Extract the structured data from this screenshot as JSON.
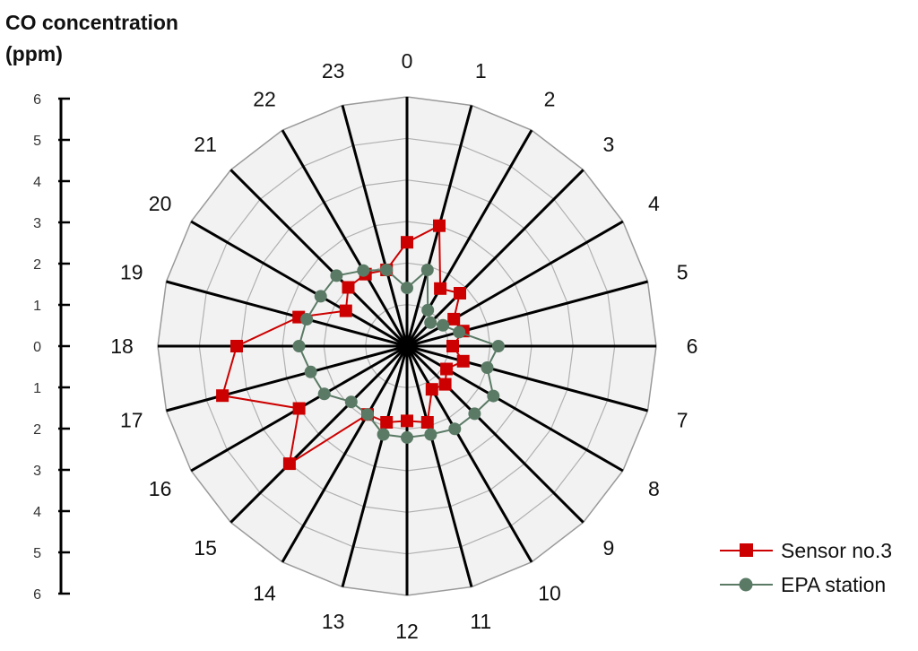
{
  "chart_data": {
    "type": "radar",
    "y_axis_title_line1": "CO concentration",
    "y_axis_title_line2": "(ppm)",
    "y_axis_ticks": [
      "6",
      "5",
      "4",
      "3",
      "2",
      "1",
      "0",
      "1",
      "2",
      "3",
      "4",
      "5",
      "6"
    ],
    "radial_range": [
      0,
      6
    ],
    "categories": [
      "0",
      "1",
      "2",
      "3",
      "4",
      "5",
      "6",
      "7",
      "8",
      "9",
      "10",
      "11",
      "12",
      "13",
      "14",
      "15",
      "16",
      "17",
      "18",
      "19",
      "20",
      "21",
      "22",
      "23"
    ],
    "grid": true,
    "legend_position": "bottom-right",
    "series": [
      {
        "name": "Sensor no.3",
        "color": "#cc0000",
        "marker": "square",
        "values": [
          2.5,
          3.0,
          1.6,
          1.8,
          1.3,
          1.4,
          1.1,
          1.4,
          1.1,
          1.3,
          1.2,
          1.9,
          1.8,
          1.9,
          1.9,
          4.0,
          3.0,
          4.6,
          4.1,
          2.7,
          1.7,
          2.0,
          2.0,
          1.9
        ]
      },
      {
        "name": "EPA station",
        "color": "#5a7a65",
        "marker": "circle",
        "values": [
          1.4,
          1.9,
          1.0,
          0.8,
          1.0,
          1.3,
          2.2,
          2.0,
          2.4,
          2.3,
          2.3,
          2.2,
          2.2,
          2.2,
          1.9,
          1.9,
          2.3,
          2.4,
          2.6,
          2.5,
          2.4,
          2.4,
          2.1,
          1.9
        ]
      }
    ]
  }
}
